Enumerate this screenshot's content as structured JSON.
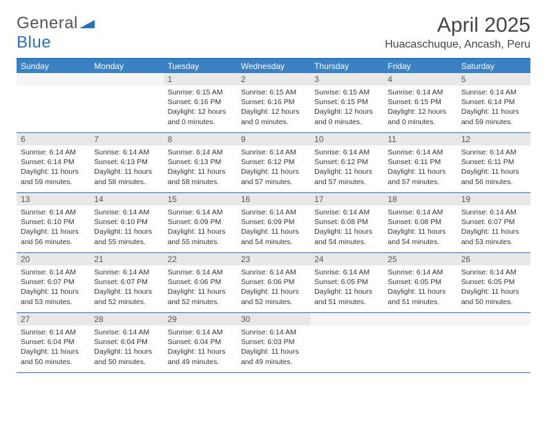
{
  "logo": {
    "part1": "General",
    "part2": "Blue"
  },
  "title": "April 2025",
  "location": "Huacaschuque, Ancash, Peru",
  "colors": {
    "header_bg": "#3a82c4",
    "header_border": "#2a71b8",
    "daynum_bg": "#e8e8e8",
    "text": "#333333"
  },
  "weekdays": [
    "Sunday",
    "Monday",
    "Tuesday",
    "Wednesday",
    "Thursday",
    "Friday",
    "Saturday"
  ],
  "calendar": {
    "weeks": [
      [
        {
          "n": null
        },
        {
          "n": null
        },
        {
          "n": 1,
          "sr": "6:15 AM",
          "ss": "6:16 PM",
          "dl": "12 hours and 0 minutes."
        },
        {
          "n": 2,
          "sr": "6:15 AM",
          "ss": "6:16 PM",
          "dl": "12 hours and 0 minutes."
        },
        {
          "n": 3,
          "sr": "6:15 AM",
          "ss": "6:15 PM",
          "dl": "12 hours and 0 minutes."
        },
        {
          "n": 4,
          "sr": "6:14 AM",
          "ss": "6:15 PM",
          "dl": "12 hours and 0 minutes."
        },
        {
          "n": 5,
          "sr": "6:14 AM",
          "ss": "6:14 PM",
          "dl": "11 hours and 59 minutes."
        }
      ],
      [
        {
          "n": 6,
          "sr": "6:14 AM",
          "ss": "6:14 PM",
          "dl": "11 hours and 59 minutes."
        },
        {
          "n": 7,
          "sr": "6:14 AM",
          "ss": "6:13 PM",
          "dl": "11 hours and 58 minutes."
        },
        {
          "n": 8,
          "sr": "6:14 AM",
          "ss": "6:13 PM",
          "dl": "11 hours and 58 minutes."
        },
        {
          "n": 9,
          "sr": "6:14 AM",
          "ss": "6:12 PM",
          "dl": "11 hours and 57 minutes."
        },
        {
          "n": 10,
          "sr": "6:14 AM",
          "ss": "6:12 PM",
          "dl": "11 hours and 57 minutes."
        },
        {
          "n": 11,
          "sr": "6:14 AM",
          "ss": "6:11 PM",
          "dl": "11 hours and 57 minutes."
        },
        {
          "n": 12,
          "sr": "6:14 AM",
          "ss": "6:11 PM",
          "dl": "11 hours and 56 minutes."
        }
      ],
      [
        {
          "n": 13,
          "sr": "6:14 AM",
          "ss": "6:10 PM",
          "dl": "11 hours and 56 minutes."
        },
        {
          "n": 14,
          "sr": "6:14 AM",
          "ss": "6:10 PM",
          "dl": "11 hours and 55 minutes."
        },
        {
          "n": 15,
          "sr": "6:14 AM",
          "ss": "6:09 PM",
          "dl": "11 hours and 55 minutes."
        },
        {
          "n": 16,
          "sr": "6:14 AM",
          "ss": "6:09 PM",
          "dl": "11 hours and 54 minutes."
        },
        {
          "n": 17,
          "sr": "6:14 AM",
          "ss": "6:08 PM",
          "dl": "11 hours and 54 minutes."
        },
        {
          "n": 18,
          "sr": "6:14 AM",
          "ss": "6:08 PM",
          "dl": "11 hours and 54 minutes."
        },
        {
          "n": 19,
          "sr": "6:14 AM",
          "ss": "6:07 PM",
          "dl": "11 hours and 53 minutes."
        }
      ],
      [
        {
          "n": 20,
          "sr": "6:14 AM",
          "ss": "6:07 PM",
          "dl": "11 hours and 53 minutes."
        },
        {
          "n": 21,
          "sr": "6:14 AM",
          "ss": "6:07 PM",
          "dl": "11 hours and 52 minutes."
        },
        {
          "n": 22,
          "sr": "6:14 AM",
          "ss": "6:06 PM",
          "dl": "11 hours and 52 minutes."
        },
        {
          "n": 23,
          "sr": "6:14 AM",
          "ss": "6:06 PM",
          "dl": "11 hours and 52 minutes."
        },
        {
          "n": 24,
          "sr": "6:14 AM",
          "ss": "6:05 PM",
          "dl": "11 hours and 51 minutes."
        },
        {
          "n": 25,
          "sr": "6:14 AM",
          "ss": "6:05 PM",
          "dl": "11 hours and 51 minutes."
        },
        {
          "n": 26,
          "sr": "6:14 AM",
          "ss": "6:05 PM",
          "dl": "11 hours and 50 minutes."
        }
      ],
      [
        {
          "n": 27,
          "sr": "6:14 AM",
          "ss": "6:04 PM",
          "dl": "11 hours and 50 minutes."
        },
        {
          "n": 28,
          "sr": "6:14 AM",
          "ss": "6:04 PM",
          "dl": "11 hours and 50 minutes."
        },
        {
          "n": 29,
          "sr": "6:14 AM",
          "ss": "6:04 PM",
          "dl": "11 hours and 49 minutes."
        },
        {
          "n": 30,
          "sr": "6:14 AM",
          "ss": "6:03 PM",
          "dl": "11 hours and 49 minutes."
        },
        {
          "n": null
        },
        {
          "n": null
        },
        {
          "n": null
        }
      ]
    ]
  }
}
